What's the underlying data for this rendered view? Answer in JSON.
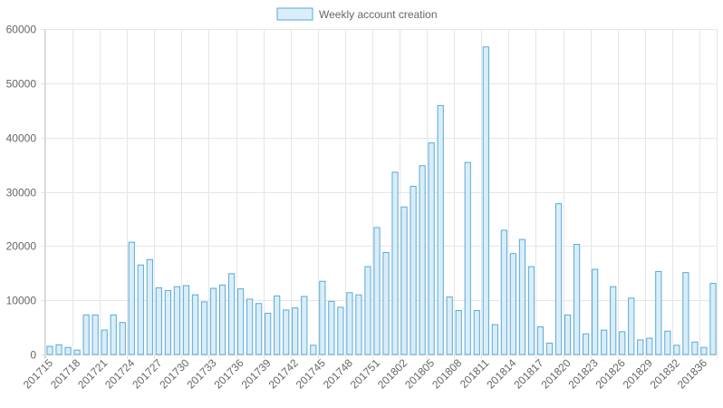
{
  "chart_data": {
    "type": "bar",
    "legend": {
      "position": "top",
      "label": "Weekly account creation"
    },
    "colors": {
      "bar_fill": "#d9eefa",
      "bar_border": "#5aa9d6",
      "grid": "#e6e6e6",
      "text": "#666666"
    },
    "grid": true,
    "ylim": [
      0,
      60000
    ],
    "yticks": [
      0,
      10000,
      20000,
      30000,
      40000,
      50000,
      60000
    ],
    "xtick_labels": [
      "201715",
      "201718",
      "201721",
      "201724",
      "201727",
      "201730",
      "201733",
      "201736",
      "201739",
      "201742",
      "201745",
      "201748",
      "201751",
      "201802",
      "201805",
      "201808",
      "201811",
      "201814",
      "201817",
      "201820",
      "201823",
      "201826",
      "201829",
      "201832",
      "201836"
    ],
    "series": [
      {
        "name": "Weekly account creation",
        "values": [
          1500,
          1800,
          1300,
          800,
          7300,
          7300,
          4500,
          7300,
          5900,
          20700,
          16500,
          17500,
          12300,
          11800,
          12500,
          12700,
          11000,
          9700,
          12200,
          12800,
          14900,
          12100,
          10200,
          9400,
          7600,
          10800,
          8200,
          8600,
          10700,
          1700,
          13500,
          9800,
          8700,
          11400,
          11000,
          16200,
          23400,
          18800,
          33600,
          27200,
          31000,
          34800,
          39000,
          45900,
          10600,
          8100,
          35400,
          8100,
          56700,
          5500,
          22900,
          18600,
          21200,
          16200,
          5100,
          2100,
          27800,
          7300,
          20300,
          3800,
          15700,
          4500,
          12500,
          4200,
          10400,
          2700,
          3000,
          15300,
          4300,
          1700,
          15100,
          2300,
          1300,
          13100
        ]
      }
    ]
  }
}
